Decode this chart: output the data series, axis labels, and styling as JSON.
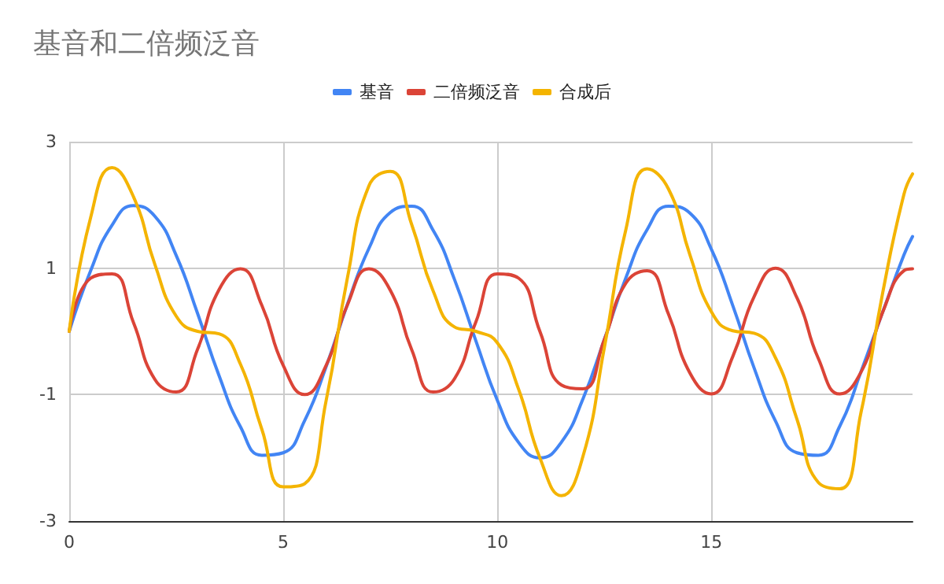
{
  "chart_data": {
    "type": "line",
    "title": "基音和二倍频泛音",
    "x": [
      0,
      0.5,
      1,
      1.5,
      2,
      2.5,
      3,
      3.5,
      4,
      4.5,
      5,
      5.5,
      6,
      6.5,
      7,
      7.5,
      8,
      8.5,
      9,
      9.5,
      10,
      10.5,
      11,
      11.5,
      12,
      12.5,
      13,
      13.5,
      14,
      14.5,
      15,
      15.5,
      16,
      16.5,
      17,
      17.5,
      18,
      18.5,
      19,
      19.5,
      19.7
    ],
    "series": [
      {
        "name": "基音",
        "color": "#4285f4",
        "values": [
          0,
          0.96,
          1.68,
          1.99,
          1.82,
          1.2,
          0.28,
          -0.7,
          -1.51,
          -1.96,
          -1.92,
          -1.41,
          -0.56,
          0.43,
          1.31,
          1.88,
          1.98,
          1.6,
          0.82,
          -0.15,
          -1.09,
          -1.76,
          -2,
          -1.75,
          -1.07,
          -0.13,
          0.84,
          1.61,
          1.98,
          1.87,
          1.3,
          0.41,
          -0.58,
          -1.42,
          -1.92,
          -1.96,
          -1.5,
          -0.63,
          0.3,
          1.21,
          1.5
        ]
      },
      {
        "name": "二倍频泛音",
        "color": "#db4437",
        "values": [
          0,
          0.84,
          0.91,
          0.14,
          -0.76,
          -0.96,
          -0.28,
          0.66,
          0.99,
          0.41,
          -0.54,
          -1,
          -0.54,
          0.42,
          0.99,
          0.65,
          -0.29,
          -0.96,
          -0.75,
          0.15,
          0.91,
          0.84,
          -0.01,
          -0.85,
          -0.91,
          -0.13,
          0.76,
          0.96,
          0.27,
          -0.66,
          -0.99,
          -0.4,
          0.55,
          1,
          0.53,
          -0.43,
          -0.99,
          -0.64,
          0.3,
          0.96,
          0.99
        ]
      },
      {
        "name": "合成后",
        "color": "#f4b400",
        "values": [
          0,
          1.8,
          2.59,
          2.13,
          1.06,
          0.24,
          0,
          -0.04,
          -0.52,
          -1.55,
          -2.46,
          -2.41,
          -1.1,
          0.85,
          2.3,
          2.53,
          1.69,
          0.64,
          0.07,
          0,
          -0.18,
          -0.92,
          -2.01,
          -2.6,
          -1.98,
          -0.26,
          1.6,
          2.57,
          2.25,
          1.21,
          0.31,
          0.01,
          -0.03,
          -0.42,
          -1.39,
          -2.39,
          -2.49,
          -1.27,
          0.6,
          2.17,
          2.49
        ]
      }
    ],
    "xlim": [
      0,
      19.7
    ],
    "xticks": [
      0,
      5,
      10,
      15
    ],
    "ylim": [
      -3,
      3
    ],
    "yticks": [
      -3,
      -1,
      1,
      3
    ],
    "grid": true,
    "legend": "top",
    "marker": "none",
    "line_style": "solid"
  }
}
